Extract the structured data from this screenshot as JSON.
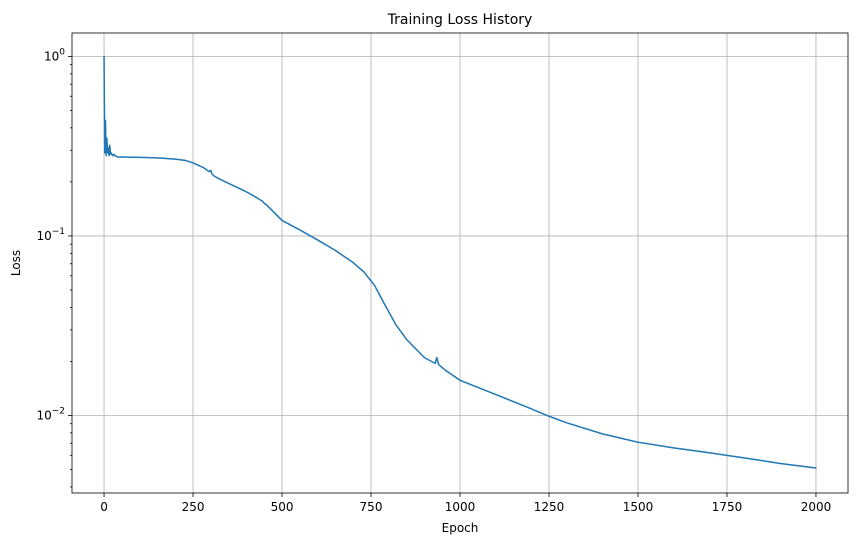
{
  "chart_data": {
    "type": "line",
    "title": "Training Loss History",
    "xlabel": "Epoch",
    "ylabel": "Loss",
    "xlim": [
      -90,
      2090
    ],
    "ylim": [
      0.0037,
      1.35
    ],
    "yscale": "log",
    "grid": true,
    "x_ticks": [
      {
        "value": 0,
        "label": "0"
      },
      {
        "value": 250,
        "label": "250"
      },
      {
        "value": 500,
        "label": "500"
      },
      {
        "value": 750,
        "label": "750"
      },
      {
        "value": 1000,
        "label": "1000"
      },
      {
        "value": 1250,
        "label": "1250"
      },
      {
        "value": 1500,
        "label": "1500"
      },
      {
        "value": 1750,
        "label": "1750"
      },
      {
        "value": 2000,
        "label": "2000"
      }
    ],
    "y_ticks": [
      {
        "value": 1,
        "base": "10",
        "exp": "0"
      },
      {
        "value": 0.1,
        "base": "10",
        "exp": "−1"
      },
      {
        "value": 0.01,
        "base": "10",
        "exp": "−2"
      }
    ],
    "series": [
      {
        "color": "#1f77b4",
        "x": [
          0,
          2,
          4,
          6,
          8,
          10,
          12,
          14,
          16,
          18,
          20,
          24,
          28,
          32,
          40,
          60,
          100,
          150,
          200,
          230,
          250,
          280,
          295,
          300,
          303,
          310,
          330,
          360,
          400,
          430,
          445,
          450,
          455,
          470,
          500,
          550,
          600,
          650,
          700,
          730,
          760,
          790,
          820,
          850,
          900,
          930,
          935,
          940,
          960,
          1000,
          1100,
          1200,
          1250,
          1300,
          1400,
          1500,
          1600,
          1700,
          1800,
          1900,
          2000
        ],
        "y": [
          1.0,
          0.29,
          0.44,
          0.28,
          0.35,
          0.29,
          0.31,
          0.28,
          0.32,
          0.285,
          0.29,
          0.28,
          0.285,
          0.278,
          0.275,
          0.275,
          0.274,
          0.272,
          0.268,
          0.263,
          0.255,
          0.24,
          0.228,
          0.232,
          0.222,
          0.215,
          0.205,
          0.192,
          0.176,
          0.163,
          0.156,
          0.152,
          0.15,
          0.14,
          0.122,
          0.108,
          0.095,
          0.083,
          0.071,
          0.063,
          0.053,
          0.041,
          0.032,
          0.0265,
          0.021,
          0.0195,
          0.021,
          0.0192,
          0.0178,
          0.0157,
          0.0131,
          0.0109,
          0.0099,
          0.0091,
          0.0079,
          0.0071,
          0.0066,
          0.0062,
          0.0058,
          0.0054,
          0.0051
        ]
      }
    ]
  }
}
